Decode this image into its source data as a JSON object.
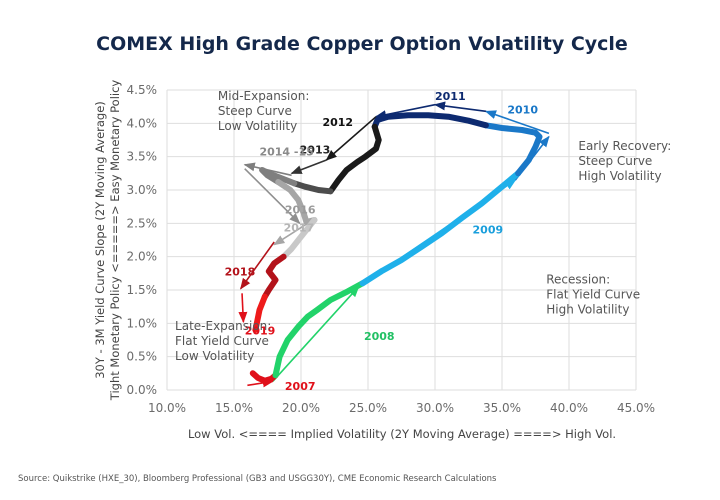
{
  "chart_data": {
    "type": "line",
    "title": "COMEX High Grade Copper Option Volatility Cycle",
    "xlabel": "Low Vol. <==== Implied Volatility (2Y Moving Average) ====> High Vol.",
    "ylabel_line1": "30Y - 3M Yield Curve Slope (2Y Moving Average)",
    "ylabel_line2": "Tight Monetary Policy <=====> Easy Monetary Policy",
    "xlim": [
      10,
      45
    ],
    "ylim": [
      0,
      4.5
    ],
    "x_ticks": [
      10,
      15,
      20,
      25,
      30,
      35,
      40,
      45
    ],
    "x_tick_labels": [
      "10.0%",
      "15.0%",
      "20.0%",
      "25.0%",
      "30.0%",
      "35.0%",
      "40.0%",
      "45.0%"
    ],
    "y_ticks": [
      0,
      0.5,
      1,
      1.5,
      2,
      2.5,
      3,
      3.5,
      4,
      4.5
    ],
    "y_tick_labels": [
      "0.0%",
      "0.5%",
      "1.0%",
      "1.5%",
      "2.0%",
      "2.5%",
      "3.0%",
      "3.5%",
      "4.0%",
      "4.5%"
    ],
    "grid": true,
    "legend": "none",
    "series": [
      {
        "name": "2007",
        "color": "#e0101a",
        "points": [
          [
            16.4,
            0.25
          ],
          [
            16.8,
            0.18
          ],
          [
            17.3,
            0.14
          ],
          [
            17.8,
            0.17
          ],
          [
            18.1,
            0.22
          ]
        ]
      },
      {
        "name": "2008",
        "color": "#22d36a",
        "points": [
          [
            18.1,
            0.22
          ],
          [
            18.4,
            0.5
          ],
          [
            19.0,
            0.75
          ],
          [
            19.8,
            0.95
          ],
          [
            20.5,
            1.1
          ],
          [
            21.2,
            1.2
          ],
          [
            22.2,
            1.35
          ],
          [
            23.5,
            1.48
          ],
          [
            24.6,
            1.6
          ]
        ]
      },
      {
        "name": "2009",
        "color": "#1fb0ea",
        "points": [
          [
            24.6,
            1.6
          ],
          [
            26,
            1.78
          ],
          [
            27.5,
            1.95
          ],
          [
            29,
            2.15
          ],
          [
            30.5,
            2.35
          ],
          [
            32,
            2.58
          ],
          [
            33.5,
            2.8
          ],
          [
            35,
            3.05
          ],
          [
            36.2,
            3.25
          ]
        ]
      },
      {
        "name": "2010",
        "color": "#1a78c8",
        "points": [
          [
            36.2,
            3.25
          ],
          [
            37.0,
            3.45
          ],
          [
            37.5,
            3.65
          ],
          [
            37.8,
            3.8
          ],
          [
            37.5,
            3.86
          ],
          [
            36.5,
            3.9
          ],
          [
            35,
            3.93
          ],
          [
            33.8,
            3.97
          ]
        ]
      },
      {
        "name": "2011",
        "color": "#0d2a70",
        "points": [
          [
            33.8,
            3.97
          ],
          [
            32.5,
            4.04
          ],
          [
            31,
            4.1
          ],
          [
            29.5,
            4.12
          ],
          [
            28,
            4.12
          ],
          [
            26.5,
            4.1
          ],
          [
            25.7,
            4.05
          ],
          [
            25.5,
            3.95
          ]
        ]
      },
      {
        "name": "2012",
        "color": "#1a1a1a",
        "points": [
          [
            25.5,
            3.95
          ],
          [
            25.8,
            3.75
          ],
          [
            25.6,
            3.62
          ],
          [
            24.8,
            3.5
          ],
          [
            24.2,
            3.42
          ],
          [
            23.4,
            3.3
          ],
          [
            22.8,
            3.15
          ],
          [
            22.2,
            2.98
          ]
        ]
      },
      {
        "name": "2013",
        "color": "#4d4d4d",
        "points": [
          [
            22.2,
            2.98
          ],
          [
            21.3,
            3.0
          ],
          [
            20.3,
            3.05
          ],
          [
            19.5,
            3.1
          ]
        ]
      },
      {
        "name": "2014-15",
        "color": "#7f7f7f",
        "points": [
          [
            19.5,
            3.1
          ],
          [
            18.5,
            3.18
          ],
          [
            17.6,
            3.25
          ],
          [
            17.1,
            3.3
          ],
          [
            17.5,
            3.22
          ],
          [
            18.3,
            3.12
          ]
        ]
      },
      {
        "name": "2016",
        "color": "#a6a6a6",
        "points": [
          [
            18.3,
            3.12
          ],
          [
            19.2,
            3.0
          ],
          [
            19.8,
            2.85
          ],
          [
            20.2,
            2.65
          ],
          [
            20.4,
            2.52
          ],
          [
            21.0,
            2.55
          ]
        ]
      },
      {
        "name": "2017",
        "color": "#c8c8c8",
        "points": [
          [
            21.0,
            2.55
          ],
          [
            20.6,
            2.45
          ],
          [
            20.0,
            2.3
          ],
          [
            19.3,
            2.12
          ],
          [
            18.7,
            2.0
          ]
        ]
      },
      {
        "name": "2018",
        "color": "#b3121a",
        "points": [
          [
            18.7,
            2.0
          ],
          [
            18.0,
            1.9
          ],
          [
            17.6,
            1.78
          ],
          [
            18.1,
            1.65
          ],
          [
            17.6,
            1.5
          ],
          [
            17.3,
            1.4
          ]
        ]
      },
      {
        "name": "2019",
        "color": "#ee1b1b",
        "points": [
          [
            17.3,
            1.4
          ],
          [
            16.9,
            1.2
          ],
          [
            16.7,
            1.0
          ],
          [
            16.6,
            0.9
          ]
        ]
      }
    ],
    "arrows": [
      {
        "year": "2007",
        "color": "#e0101a",
        "from": [
          16.0,
          0.07
        ],
        "to": [
          17.9,
          0.13
        ]
      },
      {
        "year": "2008",
        "color": "#22d36a",
        "from": [
          17.9,
          0.13
        ],
        "to": [
          24.3,
          1.55
        ]
      },
      {
        "year": "2009",
        "color": "#1fb0ea",
        "from": [
          24.3,
          1.55
        ],
        "to": [
          36.0,
          3.15
        ]
      },
      {
        "year": "2010",
        "color": "#1a78c8",
        "from": [
          36.0,
          3.15
        ],
        "to": [
          38.5,
          3.8
        ]
      },
      {
        "year": "2010b",
        "color": "#1a78c8",
        "from": [
          38.5,
          3.85
        ],
        "to": [
          33.8,
          4.18
        ]
      },
      {
        "year": "2011",
        "color": "#0d2a70",
        "from": [
          33.8,
          4.18
        ],
        "to": [
          30.0,
          4.28
        ]
      },
      {
        "year": "2011b",
        "color": "#0d2a70",
        "from": [
          30.0,
          4.28
        ],
        "to": [
          25.6,
          4.1
        ]
      },
      {
        "year": "2012",
        "color": "#1a1a1a",
        "from": [
          25.6,
          4.1
        ],
        "to": [
          21.9,
          3.45
        ]
      },
      {
        "year": "2013",
        "color": "#333333",
        "from": [
          21.9,
          3.45
        ],
        "to": [
          19.3,
          3.25
        ]
      },
      {
        "year": "2014-15",
        "color": "#7f7f7f",
        "from": [
          19.3,
          3.22
        ],
        "to": [
          15.8,
          3.38
        ]
      },
      {
        "year": "2016",
        "color": "#8f8f8f",
        "from": [
          15.8,
          3.32
        ],
        "to": [
          19.9,
          2.5
        ]
      },
      {
        "year": "2017",
        "color": "#a6a6a6",
        "from": [
          20.5,
          2.5
        ],
        "to": [
          18.0,
          2.18
        ]
      },
      {
        "year": "2018",
        "color": "#b3121a",
        "from": [
          18.0,
          2.22
        ],
        "to": [
          15.5,
          1.52
        ]
      },
      {
        "year": "2019",
        "color": "#e0101a",
        "from": [
          15.6,
          1.45
        ],
        "to": [
          15.7,
          1.02
        ]
      }
    ],
    "year_labels": [
      {
        "text": "2007",
        "color": "#e0101a",
        "x": 18.8,
        "y": 0.0
      },
      {
        "text": "2008",
        "color": "#22c064",
        "x": 24.7,
        "y": 0.75
      },
      {
        "text": "2009",
        "color": "#1a9fdc",
        "x": 32.8,
        "y": 2.35
      },
      {
        "text": "2010",
        "color": "#1a78c8",
        "x": 35.4,
        "y": 4.15
      },
      {
        "text": "2011",
        "color": "#0d2a70",
        "x": 30.0,
        "y": 4.35
      },
      {
        "text": "2012",
        "color": "#111111",
        "x": 21.6,
        "y": 3.96
      },
      {
        "text": "2013",
        "color": "#222222",
        "x": 19.9,
        "y": 3.55
      },
      {
        "text": "2014 -15",
        "color": "#8a8a8a",
        "x": 16.9,
        "y": 3.52
      },
      {
        "text": "2016",
        "color": "#9a9a9a",
        "x": 18.8,
        "y": 2.65
      },
      {
        "text": "2017",
        "color": "#b5b5b5",
        "x": 18.7,
        "y": 2.38
      },
      {
        "text": "2018",
        "color": "#b3121a",
        "x": 14.3,
        "y": 1.72
      },
      {
        "text": "2019",
        "color": "#e0101a",
        "x": 15.8,
        "y": 0.83
      }
    ],
    "annotations": [
      {
        "lines": [
          "Mid-Expansion:",
          "Steep Curve",
          "Low Volatility"
        ],
        "x": 13.8,
        "y": 4.35
      },
      {
        "lines": [
          "Early Recovery:",
          "Steep Curve",
          "High Volatility"
        ],
        "x": 40.7,
        "y": 3.6
      },
      {
        "lines": [
          "Recession:",
          "Flat Yield Curve",
          "High Volatility"
        ],
        "x": 38.3,
        "y": 1.6
      },
      {
        "lines": [
          "Late-Expansion:",
          "Flat Yield Curve",
          "Low Volatility"
        ],
        "x": 10.6,
        "y": 0.9
      }
    ]
  },
  "source": "Source: Quikstrike (HXE_30), Bloomberg Professional (GB3 and USGG30Y), CME Economic Research Calculations"
}
